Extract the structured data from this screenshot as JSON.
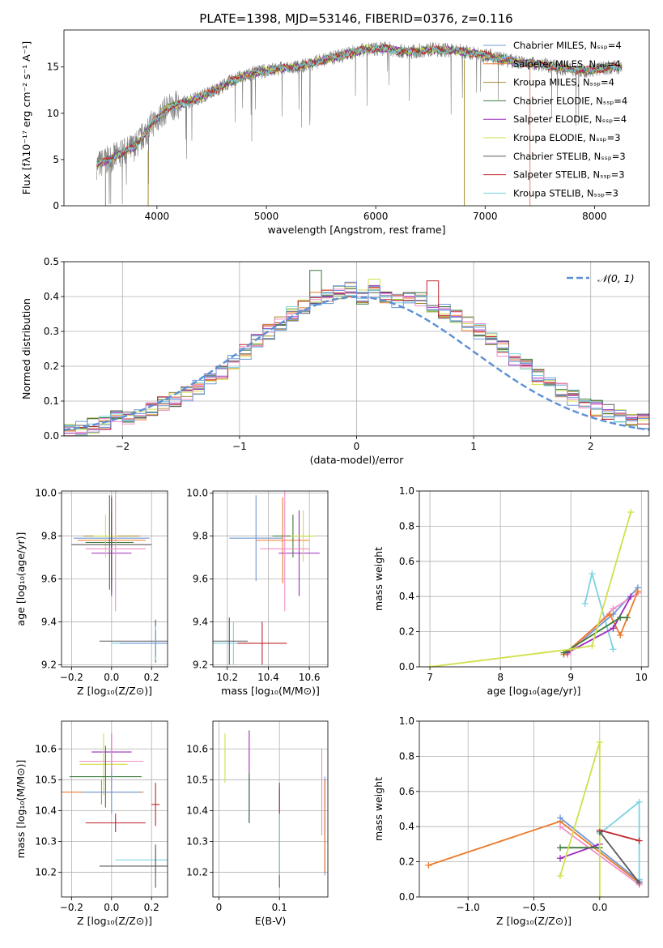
{
  "figure": {
    "title": "PLATE=1398, MJD=53146, FIBERID=0376, z=0.116"
  },
  "colors": {
    "series": [
      "#6f98d6",
      "#e9805f",
      "#a38a2e",
      "#3b7a3b",
      "#9b2bbb",
      "#d0e04a",
      "#5a5a5a",
      "#c0242c",
      "#7cd2e0",
      "#f08fc8",
      "#ec7a2a"
    ]
  },
  "chart_data": [
    {
      "id": "spectrum",
      "type": "line",
      "xlabel": "wavelength [Angstrom, rest frame]",
      "ylabel": "Flux [fλ10⁻¹⁷ erg cm⁻² s⁻¹ A⁻¹]",
      "xlim": [
        3150,
        8500
      ],
      "ylim": [
        0,
        19
      ],
      "xticks": [
        4000,
        5000,
        6000,
        7000,
        8000
      ],
      "yticks": [
        0,
        5,
        10,
        15
      ],
      "grid": false,
      "legend_position": "top-right",
      "data_continuum_x": [
        3450,
        3600,
        3800,
        3950,
        4100,
        4300,
        4500,
        4700,
        4900,
        5100,
        5300,
        5500,
        5700,
        5900,
        6100,
        6300,
        6500,
        6700,
        6900,
        7100,
        7300,
        7500,
        7700,
        7900,
        8100,
        8250
      ],
      "data_continuum_y": [
        4.4,
        5.2,
        6.4,
        8.8,
        10.6,
        11.3,
        12.3,
        13.6,
        14.4,
        14.8,
        15.0,
        15.7,
        16.3,
        16.9,
        17.0,
        16.6,
        16.9,
        16.8,
        16.5,
        16.0,
        15.5,
        15.3,
        14.9,
        14.6,
        14.9,
        15.0
      ],
      "series": [
        {
          "name": "Chabrier MILES, Nₛₛₚ=4"
        },
        {
          "name": "Salpeter MILES, Nₛₛₚ=4"
        },
        {
          "name": "Kroupa MILES, Nₛₛₚ=4"
        },
        {
          "name": "Chabrier ELODIE, Nₛₛₚ=4"
        },
        {
          "name": "Salpeter ELODIE, Nₛₛₚ=4"
        },
        {
          "name": "Kroupa ELODIE, Nₛₛₚ=3"
        },
        {
          "name": "Chabrier STELIB, Nₛₛₚ=3"
        },
        {
          "name": "Salpeter STELIB, Nₛₛₚ=3"
        },
        {
          "name": "Kroupa STELIB, Nₛₛₚ=3"
        }
      ]
    },
    {
      "id": "residuals",
      "type": "histogram",
      "xlabel": "(data-model)/error",
      "ylabel": "Normed distribution",
      "xlim": [
        -2.5,
        2.5
      ],
      "ylim": [
        0,
        0.5
      ],
      "xticks": [
        -2,
        -1,
        0,
        1,
        2
      ],
      "yticks": [
        0.0,
        0.1,
        0.2,
        0.3,
        0.4,
        0.5
      ],
      "grid": true,
      "legend": "𝒩(0, 1)",
      "legend_position": "top-right",
      "bin_width": 0.1,
      "base_density": [
        0.02,
        0.025,
        0.03,
        0.04,
        0.05,
        0.055,
        0.065,
        0.075,
        0.09,
        0.105,
        0.12,
        0.14,
        0.16,
        0.18,
        0.21,
        0.24,
        0.27,
        0.3,
        0.32,
        0.35,
        0.37,
        0.39,
        0.4,
        0.41,
        0.42,
        0.4,
        0.41,
        0.4,
        0.39,
        0.4,
        0.39,
        0.37,
        0.36,
        0.34,
        0.32,
        0.3,
        0.28,
        0.25,
        0.22,
        0.2,
        0.17,
        0.15,
        0.13,
        0.11,
        0.1,
        0.08,
        0.07,
        0.06,
        0.05,
        0.04
      ]
    },
    {
      "id": "age-vs-Z",
      "type": "errorbar",
      "xlabel": "Z [log₁₀(Z/Z⊙)]",
      "ylabel": "age  [log₁₀(age/yr)]",
      "xlim": [
        -0.25,
        0.28
      ],
      "ylim": [
        9.19,
        10.01
      ],
      "xticks": [
        -0.2,
        0.0,
        0.2
      ],
      "xticklabels": [
        "−0.2",
        "0.0",
        "0.2"
      ],
      "yticks": [
        9.2,
        9.4,
        9.6,
        9.8,
        10.0
      ],
      "grid": true,
      "points": [
        {
          "x": 0.0,
          "y": 9.79,
          "xerr": 0.19,
          "yerr": 0.2,
          "c": 0
        },
        {
          "x": 0.0,
          "y": 9.78,
          "xerr": 0.17,
          "yerr": 0.2,
          "c": 10
        },
        {
          "x": 0.0,
          "y": 9.8,
          "xerr": 0.14,
          "yerr": 0.1,
          "c": 2
        },
        {
          "x": -0.01,
          "y": 9.77,
          "xerr": 0.12,
          "yerr": 0.22,
          "c": 3
        },
        {
          "x": 0.0,
          "y": 9.72,
          "xerr": 0.1,
          "yerr": 0.2,
          "c": 4
        },
        {
          "x": -0.03,
          "y": 9.8,
          "xerr": 0.06,
          "yerr": 0.1,
          "c": 5
        },
        {
          "x": 0.0,
          "y": 9.76,
          "xerr": 0.2,
          "yerr": 0.22,
          "c": 6
        },
        {
          "x": 0.02,
          "y": 9.74,
          "xerr": 0.15,
          "yerr": 0.29,
          "c": 9
        },
        {
          "x": 0.22,
          "y": 9.31,
          "xerr": 0.28,
          "yerr": 0.1,
          "c": 6
        },
        {
          "x": 0.22,
          "y": 9.3,
          "xerr": 0.22,
          "yerr": 0.08,
          "c": 8
        },
        {
          "x": 0.22,
          "y": 9.3,
          "xerr": 0.18,
          "yerr": 0.06,
          "c": 0
        }
      ]
    },
    {
      "id": "age-vs-mass",
      "type": "errorbar",
      "xlabel": "mass [log₁₀(M/M⊙)]",
      "ylabel": "",
      "xlim": [
        10.13,
        10.69
      ],
      "ylim": [
        9.19,
        10.01
      ],
      "xticks": [
        10.2,
        10.4,
        10.6
      ],
      "yticks": [
        9.2,
        9.4,
        9.6,
        9.8,
        10.0
      ],
      "grid": true,
      "points": [
        {
          "x": 10.34,
          "y": 9.79,
          "xerr": 0.13,
          "yerr": 0.2,
          "c": 0
        },
        {
          "x": 10.47,
          "y": 9.78,
          "xerr": 0.13,
          "yerr": 0.2,
          "c": 10
        },
        {
          "x": 10.52,
          "y": 9.8,
          "xerr": 0.1,
          "yerr": 0.1,
          "c": 3
        },
        {
          "x": 10.55,
          "y": 9.72,
          "xerr": 0.1,
          "yerr": 0.2,
          "c": 4
        },
        {
          "x": 10.57,
          "y": 9.8,
          "xerr": 0.06,
          "yerr": 0.12,
          "c": 5
        },
        {
          "x": 10.48,
          "y": 9.74,
          "xerr": 0.12,
          "yerr": 0.29,
          "c": 9
        },
        {
          "x": 10.23,
          "y": 9.3,
          "xerr": 0.1,
          "yerr": 0.1,
          "c": 8
        },
        {
          "x": 10.37,
          "y": 9.3,
          "xerr": 0.12,
          "yerr": 0.1,
          "c": 7
        },
        {
          "x": 10.21,
          "y": 9.31,
          "xerr": 0.09,
          "yerr": 0.11,
          "c": 6
        }
      ]
    },
    {
      "id": "weights-vs-age",
      "type": "line",
      "xlabel": "age  [log₁₀(age/yr)]",
      "ylabel": "mass weight",
      "xlim": [
        6.85,
        10.1
      ],
      "ylim": [
        0,
        1
      ],
      "xticks": [
        7,
        8,
        9,
        10
      ],
      "yticks": [
        0.0,
        0.2,
        0.4,
        0.6,
        0.8,
        1.0
      ],
      "grid": true,
      "series": [
        {
          "c": 8,
          "x": [
            9.2,
            9.3,
            9.6
          ],
          "y": [
            0.36,
            0.53,
            0.1
          ]
        },
        {
          "c": 0,
          "x": [
            8.95,
            9.6,
            9.95
          ],
          "y": [
            0.08,
            0.3,
            0.45
          ]
        },
        {
          "c": 9,
          "x": [
            8.95,
            9.6,
            9.95
          ],
          "y": [
            0.07,
            0.33,
            0.42
          ]
        },
        {
          "c": 10,
          "x": [
            8.9,
            9.55,
            9.7,
            9.95
          ],
          "y": [
            0.07,
            0.3,
            0.18,
            0.43
          ]
        },
        {
          "c": 4,
          "x": [
            8.95,
            9.6,
            9.85
          ],
          "y": [
            0.08,
            0.22,
            0.4
          ]
        },
        {
          "c": 3,
          "x": [
            8.9,
            9.7,
            9.8
          ],
          "y": [
            0.08,
            0.28,
            0.28
          ]
        },
        {
          "c": 5,
          "x": [
            7.0,
            9.0,
            9.3,
            9.85
          ],
          "y": [
            0.0,
            0.1,
            0.12,
            0.88
          ]
        }
      ]
    },
    {
      "id": "mass-vs-Z",
      "type": "errorbar",
      "xlabel": "Z [log₁₀(Z/Z⊙)]",
      "ylabel": "mass [log₁₀(M/M⊙)]",
      "xlim": [
        -0.25,
        0.28
      ],
      "ylim": [
        10.12,
        10.69
      ],
      "xticks": [
        -0.2,
        0.0,
        0.2
      ],
      "xticklabels": [
        "−0.2",
        "0.0",
        "0.2"
      ],
      "yticks": [
        10.2,
        10.3,
        10.4,
        10.5,
        10.6
      ],
      "grid": true,
      "points": [
        {
          "x": 0.0,
          "y": 10.59,
          "xerr": 0.1,
          "yerr": 0.06,
          "c": 4
        },
        {
          "x": -0.04,
          "y": 10.55,
          "xerr": 0.12,
          "yerr": 0.1,
          "c": 5
        },
        {
          "x": 0.0,
          "y": 10.56,
          "xerr": 0.16,
          "yerr": 0.09,
          "c": 9
        },
        {
          "x": -0.03,
          "y": 10.51,
          "xerr": 0.18,
          "yerr": 0.1,
          "c": 3
        },
        {
          "x": -0.05,
          "y": 10.46,
          "xerr": 0.21,
          "yerr": 0.04,
          "c": 10
        },
        {
          "x": 0.0,
          "y": 10.46,
          "xerr": 0.15,
          "yerr": 0.07,
          "c": 0
        },
        {
          "x": 0.02,
          "y": 10.36,
          "xerr": 0.15,
          "yerr": 0.03,
          "c": 7
        },
        {
          "x": 0.22,
          "y": 10.24,
          "xerr": 0.2,
          "yerr": 0.04,
          "c": 8
        },
        {
          "x": 0.22,
          "y": 10.22,
          "xerr": 0.28,
          "yerr": 0.07,
          "c": 6
        },
        {
          "x": 0.22,
          "y": 10.42,
          "xerr": 0.02,
          "yerr": 0.07,
          "c": 7
        }
      ]
    },
    {
      "id": "mass-vs-ebv",
      "type": "errorbar",
      "xlabel": "E(B-V)",
      "ylabel": "",
      "xlim": [
        -0.01,
        0.18
      ],
      "ylim": [
        10.12,
        10.69
      ],
      "xticks": [
        0.0,
        0.1
      ],
      "yticks": [
        10.2,
        10.3,
        10.4,
        10.5,
        10.6
      ],
      "grid": true,
      "points": [
        {
          "x": 0.01,
          "y": 10.57,
          "xerr": 0,
          "yerr": 0.08,
          "c": 5
        },
        {
          "x": 0.05,
          "y": 10.51,
          "xerr": 0,
          "yerr": 0.15,
          "c": 4
        },
        {
          "x": 0.05,
          "y": 10.44,
          "xerr": 0,
          "yerr": 0.08,
          "c": 3
        },
        {
          "x": 0.1,
          "y": 10.31,
          "xerr": 0,
          "yerr": 0.16,
          "c": 6
        },
        {
          "x": 0.1,
          "y": 10.33,
          "xerr": 0,
          "yerr": 0.14,
          "c": 8
        },
        {
          "x": 0.1,
          "y": 10.44,
          "xerr": 0,
          "yerr": 0.05,
          "c": 7
        },
        {
          "x": 0.17,
          "y": 10.46,
          "xerr": 0,
          "yerr": 0.14,
          "c": 9
        },
        {
          "x": 0.175,
          "y": 10.35,
          "xerr": 0,
          "yerr": 0.16,
          "c": 0
        },
        {
          "x": 0.175,
          "y": 10.35,
          "xerr": 0,
          "yerr": 0.15,
          "c": 10
        }
      ]
    },
    {
      "id": "weights-vs-Z",
      "type": "line",
      "xlabel": "Z [log₁₀(Z/Z⊙)]",
      "ylabel": "mass weight",
      "xlim": [
        -1.37,
        0.37
      ],
      "ylim": [
        0,
        1
      ],
      "xticks": [
        -1.0,
        -0.5,
        0.0
      ],
      "xticklabels": [
        "−1.0",
        "−0.5",
        "0.0"
      ],
      "yticks": [
        0.0,
        0.2,
        0.4,
        0.6,
        0.8,
        1.0
      ],
      "grid": true,
      "series": [
        {
          "c": 10,
          "x": [
            -1.3,
            -0.3,
            0.3
          ],
          "y": [
            0.18,
            0.43,
            0.08
          ]
        },
        {
          "c": 0,
          "x": [
            -0.3,
            0.3
          ],
          "y": [
            0.45,
            0.09
          ]
        },
        {
          "c": 9,
          "x": [
            -0.3,
            0.3
          ],
          "y": [
            0.4,
            0.07
          ]
        },
        {
          "c": 8,
          "x": [
            0.0,
            0.3,
            0.3
          ],
          "y": [
            0.36,
            0.54,
            0.1
          ]
        },
        {
          "c": 4,
          "x": [
            -0.3,
            0.0
          ],
          "y": [
            0.22,
            0.3
          ]
        },
        {
          "c": 3,
          "x": [
            -0.3,
            0.0
          ],
          "y": [
            0.28,
            0.28
          ]
        },
        {
          "c": 7,
          "x": [
            0.0,
            0.3
          ],
          "y": [
            0.38,
            0.32
          ]
        },
        {
          "c": 5,
          "x": [
            -0.3,
            0.0,
            0.0
          ],
          "y": [
            0.12,
            0.88,
            0.0
          ]
        },
        {
          "c": 6,
          "x": [
            0.0,
            0.3
          ],
          "y": [
            0.37,
            0.08
          ]
        }
      ]
    }
  ]
}
